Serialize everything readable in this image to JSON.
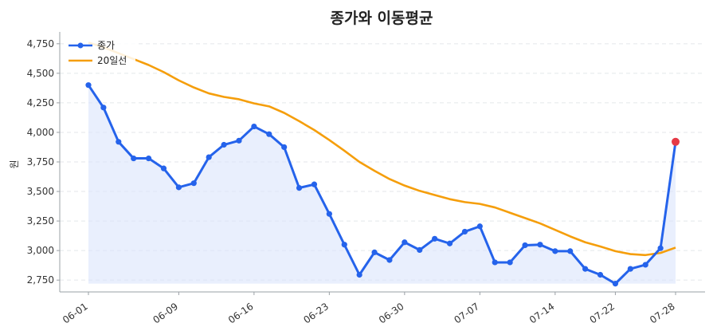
{
  "chart_data": {
    "type": "line",
    "title": "종가와 이동평균",
    "xlabel": "",
    "ylabel": "원",
    "ylim": [
      2650,
      4850
    ],
    "y_ticks": [
      2750,
      3000,
      3250,
      3500,
      3750,
      4000,
      4250,
      4500,
      4750
    ],
    "y_tick_labels": [
      "2,750",
      "3,000",
      "3,250",
      "3,500",
      "3,750",
      "4,000",
      "4,250",
      "4,500",
      "4,750"
    ],
    "x_tick_labels": [
      "06-01",
      "06-09",
      "06-16",
      "06-23",
      "06-30",
      "07-07",
      "07-14",
      "07-22",
      "07-28"
    ],
    "x_tick_index": [
      0,
      6,
      11,
      16,
      21,
      26,
      31,
      35,
      39
    ],
    "grid": true,
    "legend_position": "top-left",
    "colors": {
      "close": "#2563eb",
      "ma": "#f59e0b",
      "fill": "#dbe4fb",
      "last_point": "#e63946",
      "grid": "#e3e6ea"
    },
    "series": [
      {
        "name": "종가",
        "values": [
          4400,
          4210,
          3920,
          3780,
          3780,
          3695,
          3535,
          3570,
          3790,
          3895,
          3930,
          4050,
          3985,
          3875,
          3530,
          3560,
          3310,
          3050,
          2795,
          2985,
          2920,
          3070,
          3005,
          3100,
          3060,
          3160,
          3205,
          2900,
          2900,
          3045,
          3050,
          2995,
          2995,
          2845,
          2795,
          2720,
          2845,
          2880,
          3020,
          3920
        ]
      },
      {
        "name": "20일선",
        "values": [
          4760,
          4720,
          4670,
          4620,
          4570,
          4510,
          4440,
          4380,
          4330,
          4300,
          4280,
          4245,
          4220,
          4165,
          4095,
          4020,
          3935,
          3845,
          3750,
          3675,
          3605,
          3550,
          3505,
          3470,
          3435,
          3410,
          3395,
          3365,
          3320,
          3275,
          3230,
          3175,
          3120,
          3070,
          3035,
          2995,
          2970,
          2962,
          2980,
          3025
        ]
      }
    ]
  }
}
